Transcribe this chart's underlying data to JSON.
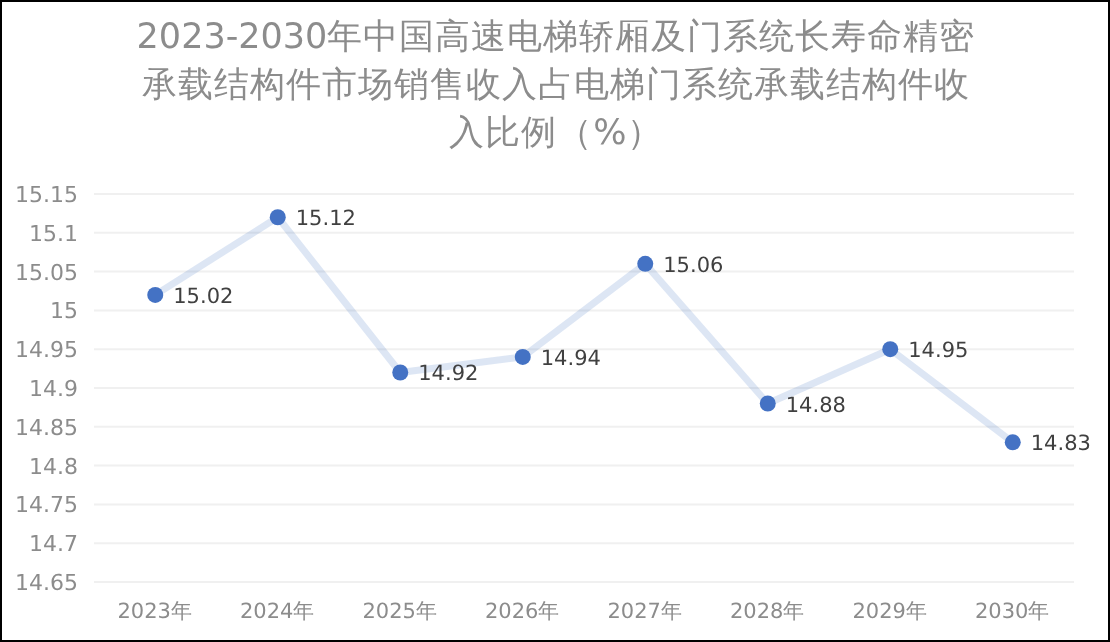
{
  "chart_data": {
    "type": "line",
    "title": "2023-2030年中国高速电梯轿厢及门系统长寿命精密承载结构件市场销售收入占电梯门系统承载结构件收入比例（%）",
    "categories": [
      "2023年",
      "2024年",
      "2025年",
      "2026年",
      "2027年",
      "2028年",
      "2029年",
      "2030年"
    ],
    "series": [
      {
        "color": "#4472c4",
        "values": [
          15.02,
          15.12,
          14.92,
          14.94,
          15.06,
          14.88,
          14.95,
          14.83
        ]
      }
    ],
    "ylim": [
      14.65,
      15.15
    ],
    "yticks": [
      14.65,
      14.7,
      14.75,
      14.8,
      14.85,
      14.9,
      14.95,
      15,
      15.05,
      15.1,
      15.15
    ],
    "grid": "y",
    "marker": "circle",
    "line_style": "solid",
    "data_labels": true
  }
}
